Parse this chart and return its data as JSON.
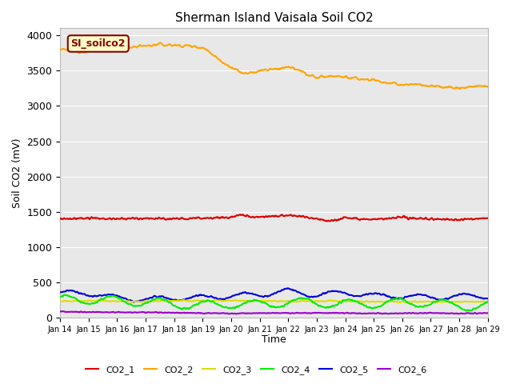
{
  "title": "Sherman Island Vaisala Soil CO2",
  "xlabel": "Time",
  "ylabel": "Soil CO2 (mV)",
  "ylim": [
    0,
    4100
  ],
  "bg_color": "#e8e8e8",
  "fig_bg": "#ffffff",
  "annotation_text": "SI_soilco2",
  "annotation_bg": "#ffffcc",
  "annotation_edge": "#8b0000",
  "series_colors": {
    "CO2_1": "#dd0000",
    "CO2_2": "#ffa500",
    "CO2_3": "#dddd00",
    "CO2_4": "#00ee00",
    "CO2_5": "#0000dd",
    "CO2_6": "#9900cc"
  },
  "legend_colors": [
    "#dd0000",
    "#ffa500",
    "#dddd00",
    "#00ee00",
    "#0000dd",
    "#9900cc"
  ],
  "legend_labels": [
    "CO2_1",
    "CO2_2",
    "CO2_3",
    "CO2_4",
    "CO2_5",
    "CO2_6"
  ],
  "x_tick_labels": [
    "Jan 14",
    "Jan 15",
    "Jan 16",
    "Jan 17",
    "Jan 18",
    "Jan 19",
    "Jan 20",
    "Jan 21",
    "Jan 22",
    "Jan 23",
    "Jan 24",
    "Jan 25",
    "Jan 26",
    "Jan 27",
    "Jan 28",
    "Jan 29"
  ]
}
